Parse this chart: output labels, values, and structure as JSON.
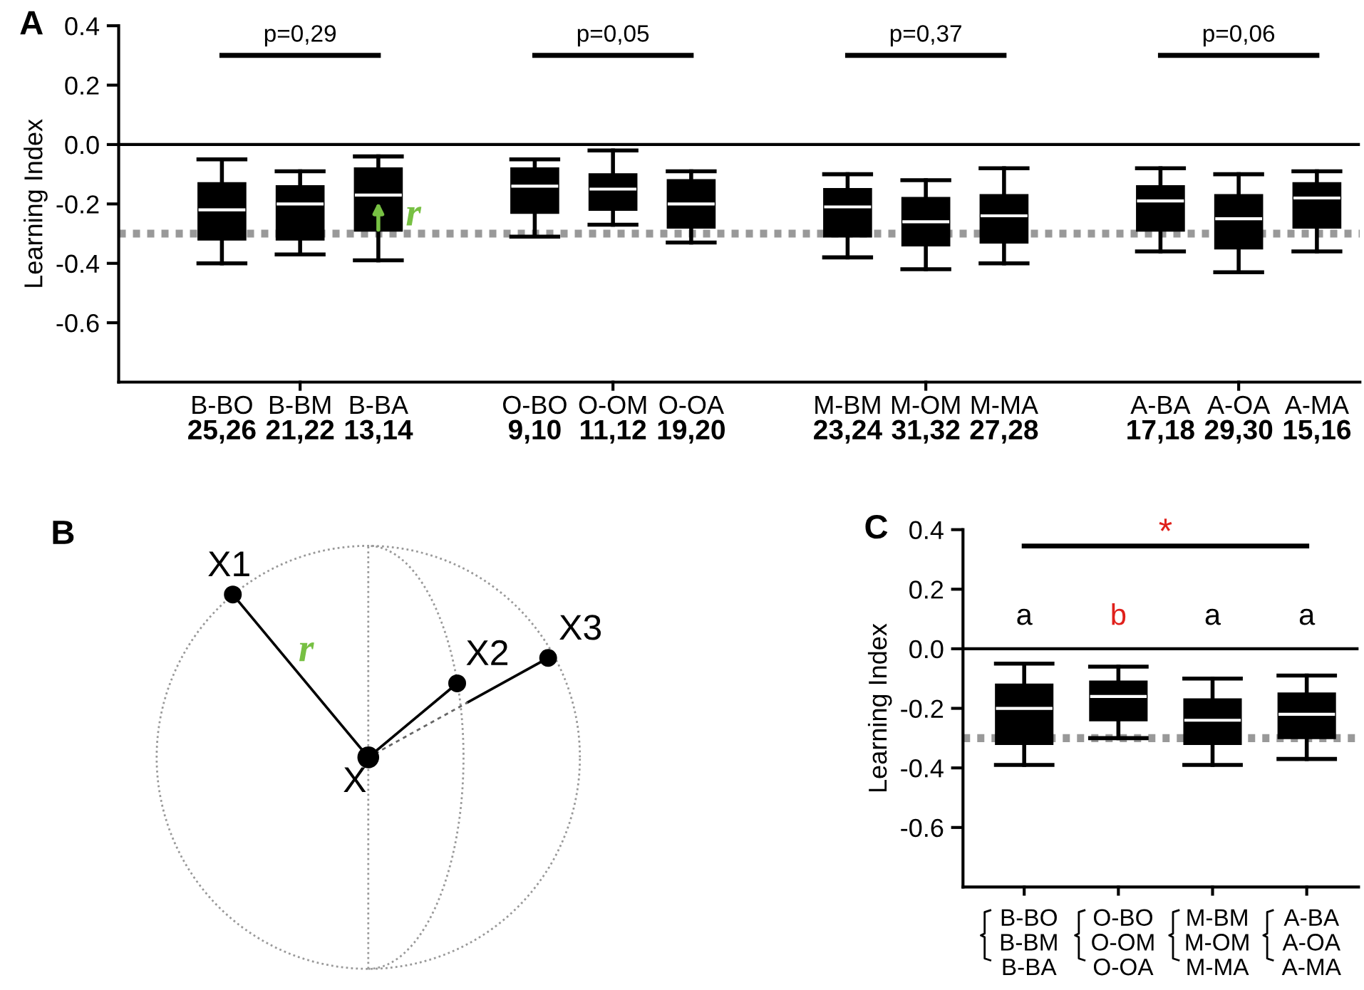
{
  "chart_data": [
    {
      "type": "box",
      "title": "A",
      "ylabel": "Learning Index",
      "color": "#000000",
      "categories": [
        "B-BO\n25,26",
        "B-BM\n21,22",
        "B-BA\n13,14",
        null,
        "O-BO\n9,10",
        "O-OM\n11,12",
        "O-OA\n19,20",
        null,
        "M-BM\n23,24",
        "M-OM\n31,32",
        "M-MA\n27,28",
        null,
        "A-BA\n17,18",
        "A-OA\n29,30",
        "A-MA\n15,16"
      ],
      "boxes": [
        {
          "low": -0.4,
          "q1": -0.32,
          "median": -0.22,
          "q3": -0.13,
          "high": -0.05
        },
        {
          "low": -0.37,
          "q1": -0.32,
          "median": -0.2,
          "q3": -0.14,
          "high": -0.09
        },
        {
          "low": -0.39,
          "q1": -0.29,
          "median": -0.17,
          "q3": -0.08,
          "high": -0.04
        },
        null,
        {
          "low": -0.31,
          "q1": -0.23,
          "median": -0.14,
          "q3": -0.08,
          "high": -0.05
        },
        {
          "low": -0.27,
          "q1": -0.22,
          "median": -0.15,
          "q3": -0.1,
          "high": -0.02
        },
        {
          "low": -0.33,
          "q1": -0.28,
          "median": -0.2,
          "q3": -0.12,
          "high": -0.09
        },
        null,
        {
          "low": -0.38,
          "q1": -0.31,
          "median": -0.21,
          "q3": -0.15,
          "high": -0.1
        },
        {
          "low": -0.42,
          "q1": -0.34,
          "median": -0.26,
          "q3": -0.18,
          "high": -0.12
        },
        {
          "low": -0.4,
          "q1": -0.33,
          "median": -0.24,
          "q3": -0.17,
          "high": -0.08
        },
        null,
        {
          "low": -0.36,
          "q1": -0.29,
          "median": -0.19,
          "q3": -0.14,
          "high": -0.08
        },
        {
          "low": -0.43,
          "q1": -0.35,
          "median": -0.25,
          "q3": -0.17,
          "high": -0.1
        },
        {
          "low": -0.36,
          "q1": -0.28,
          "median": -0.18,
          "q3": -0.13,
          "high": -0.09
        }
      ],
      "ylim": [
        -0.8,
        0.4
      ],
      "yticks": [
        -0.6,
        -0.4,
        -0.2,
        {
          "value": 0.0,
          "label": "0.0"
        },
        0.2,
        0.4
      ],
      "ref_lines": [
        {
          "axis": "y",
          "value": 0.0,
          "color": "#000000",
          "line_style": "solid"
        },
        {
          "axis": "y",
          "value": -0.3,
          "color": "#999999",
          "line_style": "dotted"
        }
      ],
      "annotations": [
        "p=0,29",
        "p=0,05",
        "p=0,37",
        "p=0,06",
        "r"
      ]
    },
    {
      "type": "other",
      "title": "B",
      "annotations": [
        "X1",
        "X2",
        "X3",
        "X",
        "r"
      ]
    },
    {
      "type": "box",
      "title": "C",
      "ylabel": "Learning Index",
      "color": "#000000",
      "categories": [
        "B-BO\nB-BM\nB-BA",
        "O-BO\nO-OM\nO-OA",
        "M-BM\nM-OM\nM-MA",
        "A-BA\nA-OA\nA-MA"
      ],
      "boxes": [
        {
          "low": -0.39,
          "q1": -0.32,
          "median": -0.2,
          "q3": -0.12,
          "high": -0.05
        },
        {
          "low": -0.3,
          "q1": -0.24,
          "median": -0.16,
          "q3": -0.11,
          "high": -0.06
        },
        {
          "low": -0.39,
          "q1": -0.32,
          "median": -0.24,
          "q3": -0.17,
          "high": -0.1
        },
        {
          "low": -0.37,
          "q1": -0.3,
          "median": -0.22,
          "q3": -0.15,
          "high": -0.09
        }
      ],
      "ylim": [
        -0.8,
        0.4
      ],
      "yticks": [
        -0.6,
        -0.4,
        -0.2,
        {
          "value": 0.0,
          "label": "0.0"
        },
        0.2,
        0.4
      ],
      "ref_lines": [
        {
          "axis": "y",
          "value": 0.0,
          "color": "#000000",
          "line_style": "solid"
        },
        {
          "axis": "y",
          "value": -0.3,
          "color": "#999999",
          "line_style": "dotted"
        }
      ],
      "annotations": [
        "a",
        "b",
        "a",
        "a",
        "*"
      ]
    }
  ]
}
